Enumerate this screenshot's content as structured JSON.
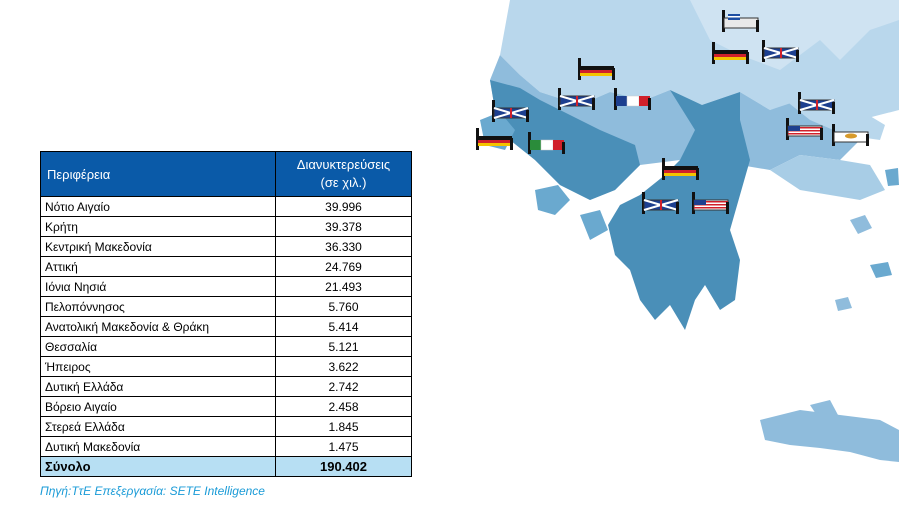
{
  "table": {
    "header_region": "Περιφέρεια",
    "header_value_line1": "Διανυκτερεύσεις",
    "header_value_line2": "(σε χιλ.)",
    "rows": [
      {
        "region": "Νότιο Αιγαίο",
        "value": "39.996"
      },
      {
        "region": "Κρήτη",
        "value": "39.378"
      },
      {
        "region": "Κεντρική Μακεδονία",
        "value": "36.330"
      },
      {
        "region": "Αττική",
        "value": "24.769"
      },
      {
        "region": "Ιόνια Νησιά",
        "value": "21.493"
      },
      {
        "region": "Πελοπόννησος",
        "value": "5.760"
      },
      {
        "region": "Ανατολική Μακεδονία & Θράκη",
        "value": "5.414"
      },
      {
        "region": "Θεσσαλία",
        "value": "5.121"
      },
      {
        "region": "Ήπειρος",
        "value": "3.622"
      },
      {
        "region": "Δυτική Ελλάδα",
        "value": "2.742"
      },
      {
        "region": "Βόρειο Αιγαίο",
        "value": "2.458"
      },
      {
        "region": "Στερεά Ελλάδα",
        "value": "1.845"
      },
      {
        "region": "Δυτική Μακεδονία",
        "value": "1.475"
      }
    ],
    "total_label": "Σύνολο",
    "total_value": "190.402"
  },
  "source": "Πηγή:ΤτΕ Επεξεργασία: SETE Intelligence",
  "map": {
    "icons": [
      {
        "name": "bed-flag-greece-icon",
        "flag": "greece"
      },
      {
        "name": "bed-flag-uk-icon",
        "flag": "uk"
      },
      {
        "name": "bed-flag-germany-icon",
        "flag": "germany"
      },
      {
        "name": "bed-flag-uk-icon",
        "flag": "uk"
      },
      {
        "name": "bed-flag-germany-icon",
        "flag": "germany"
      },
      {
        "name": "bed-flag-uk-icon",
        "flag": "uk"
      },
      {
        "name": "bed-flag-france-icon",
        "flag": "france"
      },
      {
        "name": "bed-flag-uk-icon",
        "flag": "uk"
      },
      {
        "name": "bed-flag-uk-icon",
        "flag": "uk"
      },
      {
        "name": "bed-flag-germany-icon",
        "flag": "germany"
      },
      {
        "name": "bed-flag-italy-icon",
        "flag": "italy"
      },
      {
        "name": "bed-flag-usa-icon",
        "flag": "usa"
      },
      {
        "name": "bed-flag-cyprus-icon",
        "flag": "cyprus"
      },
      {
        "name": "bed-flag-germany-icon",
        "flag": "germany"
      },
      {
        "name": "bed-flag-uk-icon",
        "flag": "uk"
      },
      {
        "name": "bed-flag-usa-icon",
        "flag": "usa"
      }
    ],
    "colors": {
      "sea": "#ffffff",
      "light_region": "#b9d7ec",
      "mid_region": "#8fbcdc",
      "dark_region": "#4a8fb8",
      "island": "#6aa9cf"
    }
  }
}
